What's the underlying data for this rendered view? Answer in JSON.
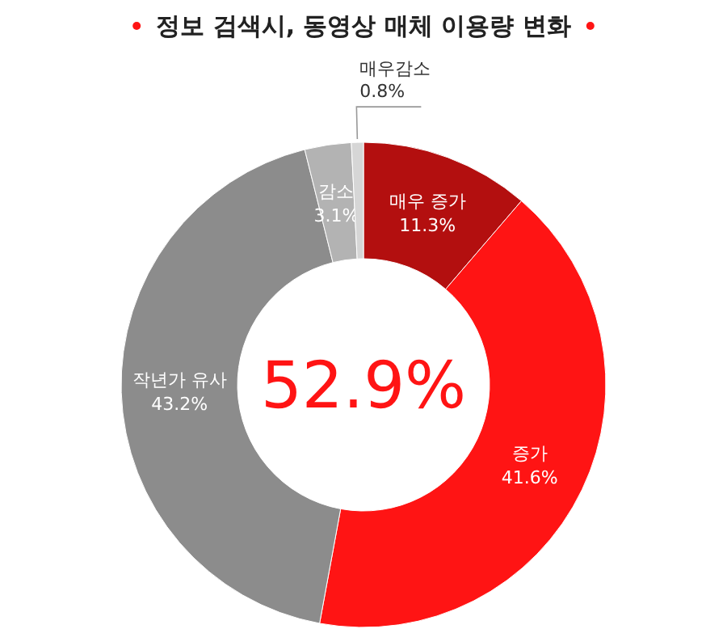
{
  "chart_data": {
    "type": "donut",
    "title": "정보 검색시, 동영상 매체 이용량 변화",
    "categories": [
      "매우 증가",
      "증가",
      "작년가 유사",
      "감소",
      "매우감소"
    ],
    "values": [
      11.3,
      41.6,
      43.2,
      3.1,
      0.8
    ],
    "colors": [
      "#b30f0f",
      "#ff1414",
      "#8c8c8c",
      "#b3b3b3",
      "#d6d6d6"
    ],
    "value_labels": [
      "11.3%",
      "41.6%",
      "43.2%",
      "3.1%",
      "0.8%"
    ],
    "annotations": [
      "52.9%"
    ]
  }
}
